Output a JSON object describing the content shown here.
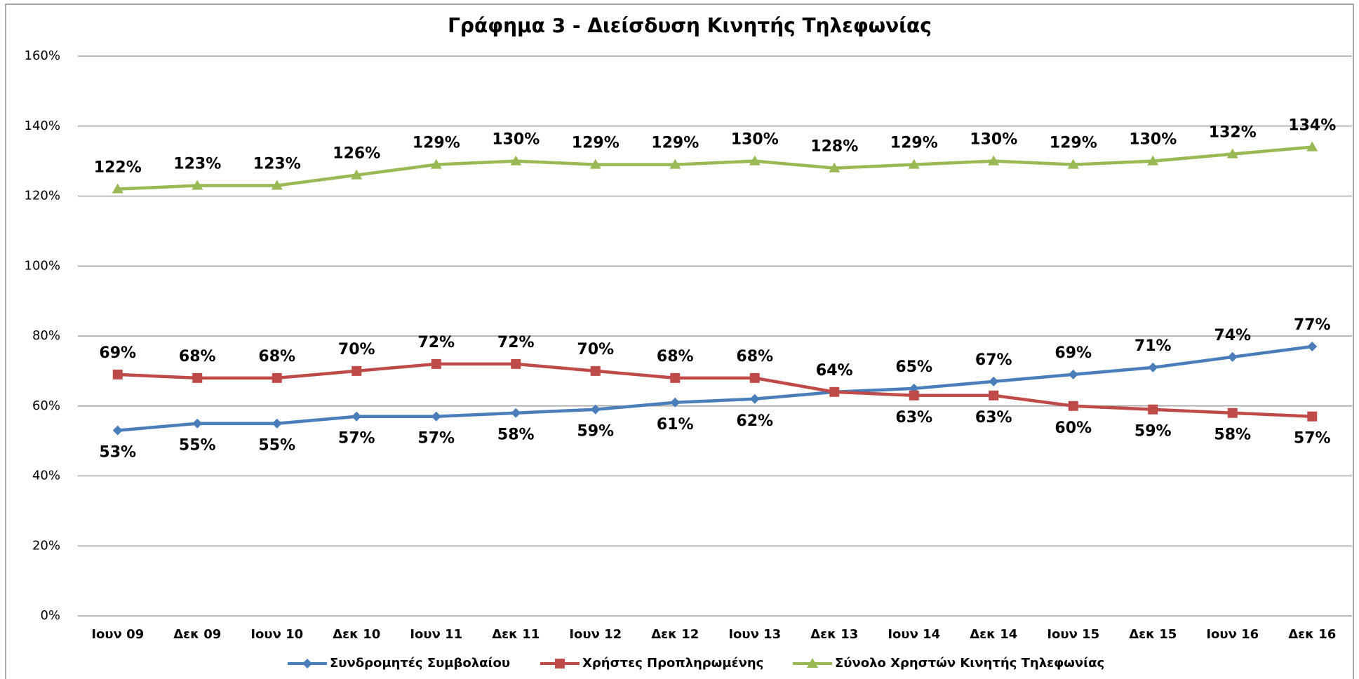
{
  "chart_data": {
    "type": "line",
    "title": "Γράφημα 3 - Διείσδυση Κινητής Τηλεφωνίας",
    "categories": [
      "Ιουν 09",
      "Δεκ 09",
      "Ιουν 10",
      "Δεκ 10",
      "Ιουν 11",
      "Δεκ 11",
      "Ιουν 12",
      "Δεκ 12",
      "Ιουν 13",
      "Δεκ 13",
      "Ιουν 14",
      "Δεκ 14",
      "Ιουν 15",
      "Δεκ 15",
      "Ιουν 16",
      "Δεκ 16"
    ],
    "series": [
      {
        "name": "Συνδρομητές Συμβολαίου",
        "color": "#4a7ebb",
        "marker": "diamond",
        "values": [
          53,
          55,
          55,
          57,
          57,
          58,
          59,
          61,
          62,
          64,
          65,
          67,
          69,
          71,
          74,
          77
        ],
        "value_labels": [
          "53%",
          "55%",
          "55%",
          "57%",
          "57%",
          "58%",
          "59%",
          "61%",
          "62%",
          "64%",
          "65%",
          "67%",
          "69%",
          "71%",
          "74%",
          "77%"
        ]
      },
      {
        "name": "Χρήστες Προπληρωμένης",
        "color": "#be4b48",
        "marker": "square",
        "values": [
          69,
          68,
          68,
          70,
          72,
          72,
          70,
          68,
          68,
          64,
          63,
          63,
          60,
          59,
          58,
          57
        ],
        "value_labels": [
          "69%",
          "68%",
          "68%",
          "70%",
          "72%",
          "72%",
          "70%",
          "68%",
          "68%",
          "64%",
          "63%",
          "63%",
          "60%",
          "59%",
          "58%",
          "57%"
        ]
      },
      {
        "name": "Σύνολο Χρηστών Κινητής Τηλεφωνίας",
        "color": "#98b954",
        "marker": "triangle",
        "values": [
          122,
          123,
          123,
          126,
          129,
          130,
          129,
          129,
          130,
          128,
          129,
          130,
          129,
          130,
          132,
          134
        ],
        "value_labels": [
          "122%",
          "123%",
          "123%",
          "126%",
          "129%",
          "130%",
          "129%",
          "129%",
          "130%",
          "128%",
          "129%",
          "130%",
          "129%",
          "130%",
          "132%",
          "134%"
        ]
      }
    ],
    "ylim": [
      0,
      160
    ],
    "yticks": [
      {
        "value": 0,
        "label": "0%"
      },
      {
        "value": 20,
        "label": "20%"
      },
      {
        "value": 40,
        "label": "40%"
      },
      {
        "value": 60,
        "label": "60%"
      },
      {
        "value": 80,
        "label": "80%"
      },
      {
        "value": 100,
        "label": "100%"
      },
      {
        "value": 120,
        "label": "120%"
      },
      {
        "value": 140,
        "label": "140%"
      },
      {
        "value": 160,
        "label": "160%"
      }
    ],
    "grid": true,
    "legend": "bottom"
  }
}
